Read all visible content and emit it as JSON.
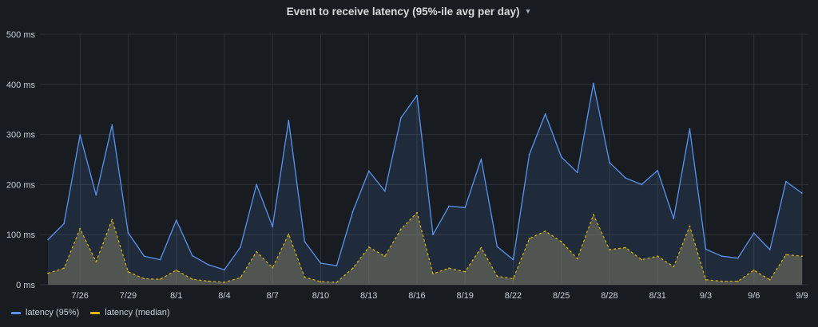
{
  "panel": {
    "title": "Event to receive latency (95%-ile avg per day)"
  },
  "chart_data": {
    "type": "area",
    "title": "Event to receive latency (95%-ile avg per day)",
    "xlabel": "",
    "ylabel": "",
    "ylim": [
      0,
      500
    ],
    "yticks": [
      "0 ms",
      "100 ms",
      "200 ms",
      "300 ms",
      "400 ms",
      "500 ms"
    ],
    "xticks": [
      "7/26",
      "7/29",
      "8/1",
      "8/4",
      "8/7",
      "8/10",
      "8/13",
      "8/16",
      "8/19",
      "8/22",
      "8/25",
      "8/28",
      "8/31",
      "9/3",
      "9/6",
      "9/9"
    ],
    "x": [
      "7/24",
      "7/25",
      "7/26",
      "7/27",
      "7/28",
      "7/29",
      "7/30",
      "7/31",
      "8/1",
      "8/2",
      "8/3",
      "8/4",
      "8/5",
      "8/6",
      "8/7",
      "8/8",
      "8/9",
      "8/10",
      "8/11",
      "8/12",
      "8/13",
      "8/14",
      "8/15",
      "8/16",
      "8/17",
      "8/18",
      "8/19",
      "8/20",
      "8/21",
      "8/22",
      "8/23",
      "8/24",
      "8/25",
      "8/26",
      "8/27",
      "8/28",
      "8/29",
      "8/30",
      "8/31",
      "9/1",
      "9/2",
      "9/3",
      "9/4",
      "9/5",
      "9/6",
      "9/7",
      "9/8",
      "9/9"
    ],
    "grid": true,
    "legend_position": "bottom-left",
    "series": [
      {
        "name": "latency (95%)",
        "color": "#5794f2",
        "values": [
          90,
          122,
          299,
          179,
          319,
          104,
          57,
          50,
          129,
          58,
          40,
          30,
          75,
          200,
          116,
          328,
          86,
          43,
          38,
          146,
          227,
          187,
          333,
          378,
          100,
          157,
          154,
          251,
          76,
          50,
          260,
          341,
          255,
          224,
          402,
          244,
          213,
          200,
          228,
          132,
          311,
          71,
          57,
          53,
          103,
          70,
          206,
          183
        ]
      },
      {
        "name": "latency (median)",
        "color": "#e0b400",
        "values": [
          23,
          33,
          112,
          46,
          130,
          26,
          12,
          11,
          29,
          11,
          7,
          5,
          14,
          66,
          34,
          101,
          15,
          6,
          5,
          33,
          75,
          57,
          111,
          144,
          22,
          33,
          26,
          74,
          17,
          12,
          92,
          107,
          86,
          52,
          140,
          70,
          74,
          50,
          57,
          36,
          117,
          10,
          7,
          7,
          29,
          10,
          60,
          57
        ]
      }
    ]
  }
}
